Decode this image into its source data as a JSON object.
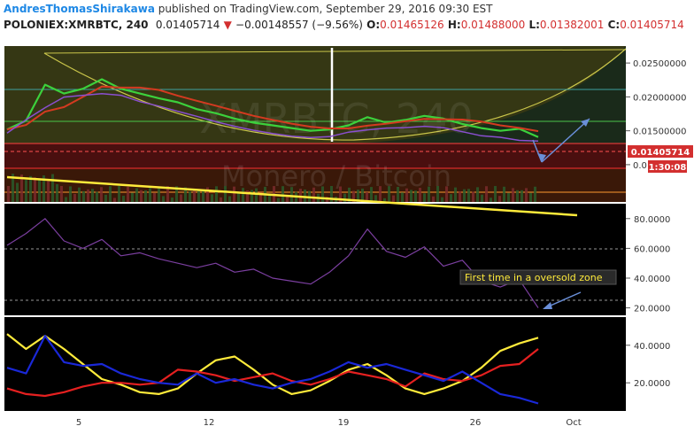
{
  "header": {
    "author": "AndresThomasShirakawa",
    "published_text": "published on TradingView.com, September 29, 2016 09:30 EST",
    "symbol": "POLONIEX:XMRBTC, 240",
    "last": "0.01405714",
    "change": "−0.00148557 (−9.56%)",
    "o_label": "O:",
    "o_value": "0.01465126",
    "h_label": "H:",
    "h_value": "0.01488000",
    "l_label": "L:",
    "l_value": "0.01382001",
    "c_label": "C:",
    "c_value": "0.01405714"
  },
  "watermark": {
    "line1": "XMRBTC, 240",
    "line2": "Monero / Bitcoin"
  },
  "price_axis": {
    "ticks": [
      "0.02500000",
      "0.02000000",
      "0.01500000",
      "0.01000000"
    ],
    "current_price": "0.01405714",
    "countdown": "1:30:08"
  },
  "rsi_axis": {
    "ticks": [
      "80.0000",
      "60.0000",
      "40.0000",
      "20.0000"
    ]
  },
  "adx_axis": {
    "ticks": [
      "40.0000",
      "20.0000"
    ]
  },
  "annotation": "First time in a oversold zone",
  "x_axis": {
    "ticks": [
      "5",
      "12",
      "19",
      "26",
      "Oct"
    ]
  },
  "colors": {
    "panel_bg": "#000000",
    "accent_yellow": "#ffeb3b",
    "current_price_red": "#d32f2f",
    "arrow_blue": "#6a8fd8",
    "green_line": "#3cd13c",
    "rsi_purple": "#7b3fa0"
  },
  "chart_data": [
    {
      "type": "line",
      "panel": "price",
      "yrange": [
        0.0045,
        0.0275
      ],
      "x_ticks": [
        "5",
        "12",
        "19",
        "26",
        "Oct"
      ],
      "y_ticks": [
        0.025,
        0.02,
        0.015,
        0.01
      ],
      "current_price": 0.01405714,
      "series": [
        {
          "x": [
            1,
            2,
            3,
            4,
            5,
            6,
            7,
            8,
            9,
            10,
            11,
            12,
            13,
            14,
            15,
            16,
            17,
            18,
            19,
            20,
            21,
            22,
            23,
            24,
            25,
            26,
            27,
            28,
            29
          ],
          "values": [
            0.0152,
            0.0165,
            0.0218,
            0.0205,
            0.0212,
            0.0226,
            0.0212,
            0.0205,
            0.0198,
            0.0192,
            0.0182,
            0.0176,
            0.0168,
            0.0162,
            0.0158,
            0.0154,
            0.015,
            0.0152,
            0.0158,
            0.017,
            0.0162,
            0.0166,
            0.0172,
            0.0168,
            0.016,
            0.0154,
            0.015,
            0.0153,
            0.01406
          ]
        }
      ]
    },
    {
      "type": "line",
      "panel": "rsi",
      "yrange": [
        15,
        90
      ],
      "y_ticks": [
        80,
        60,
        40,
        20
      ],
      "series": [
        {
          "x": [
            1,
            2,
            3,
            4,
            5,
            6,
            7,
            8,
            9,
            10,
            11,
            12,
            13,
            14,
            15,
            16,
            17,
            18,
            19,
            20,
            21,
            22,
            23,
            24,
            25,
            26,
            27,
            28,
            29
          ],
          "values": [
            62,
            70,
            80,
            65,
            60,
            66,
            55,
            57,
            53,
            50,
            47,
            50,
            44,
            46,
            40,
            38,
            36,
            44,
            55,
            73,
            58,
            54,
            61,
            48,
            52,
            38,
            34,
            39,
            20
          ]
        }
      ]
    },
    {
      "type": "line",
      "panel": "adx",
      "yrange": [
        5,
        55
      ],
      "y_ticks": [
        40,
        20
      ],
      "series": [
        {
          "x": [
            1,
            2,
            3,
            4,
            5,
            6,
            7,
            8,
            9,
            10,
            11,
            12,
            13,
            14,
            15,
            16,
            17,
            18,
            19,
            20,
            21,
            22,
            23,
            24,
            25,
            26,
            27,
            28,
            29
          ],
          "values": [
            46,
            38,
            45,
            38,
            30,
            22,
            19,
            15,
            14,
            17,
            25,
            32,
            34,
            27,
            19,
            14,
            16,
            21,
            27,
            30,
            24,
            17,
            14,
            17,
            21,
            28,
            37,
            41,
            44
          ]
        },
        {
          "x": [
            1,
            2,
            3,
            4,
            5,
            6,
            7,
            8,
            9,
            10,
            11,
            12,
            13,
            14,
            15,
            16,
            17,
            18,
            19,
            20,
            21,
            22,
            23,
            24,
            25,
            26,
            27,
            28,
            29
          ],
          "values": [
            17,
            14,
            13,
            15,
            18,
            20,
            20,
            19,
            20,
            27,
            26,
            24,
            21,
            23,
            25,
            21,
            19,
            22,
            26,
            24,
            22,
            18,
            25,
            22,
            21,
            24,
            29,
            30,
            38
          ]
        },
        {
          "x": [
            1,
            2,
            3,
            4,
            5,
            6,
            7,
            8,
            9,
            10,
            11,
            12,
            13,
            14,
            15,
            16,
            17,
            18,
            19,
            20,
            21,
            22,
            23,
            24,
            25,
            26,
            27,
            28,
            29
          ],
          "values": [
            28,
            25,
            45,
            31,
            29,
            30,
            25,
            22,
            20,
            19,
            25,
            20,
            22,
            19,
            17,
            20,
            22,
            26,
            31,
            28,
            30,
            27,
            24,
            21,
            26,
            20,
            14,
            12,
            9
          ]
        }
      ]
    }
  ]
}
